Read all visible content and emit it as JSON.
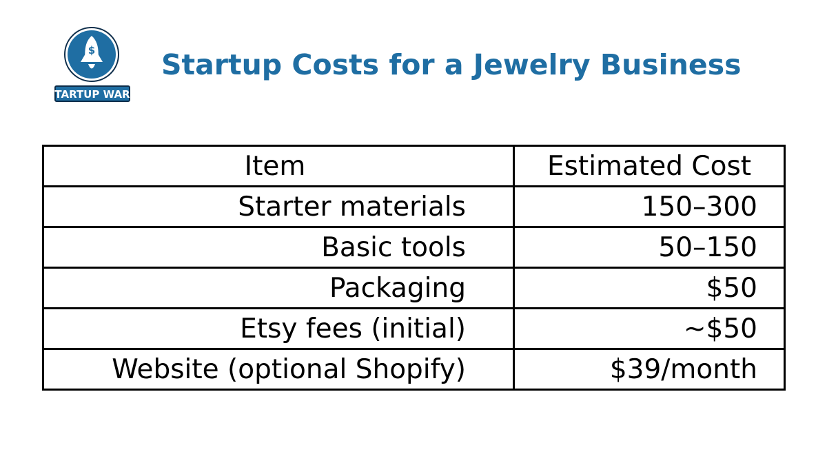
{
  "brand": {
    "logo_text": "STARTUP WARS",
    "logo_icon": "rocket-dollar-icon",
    "colors": {
      "primary": "#1f6ea3",
      "outline": "#0d2d4a"
    }
  },
  "header": {
    "title": "Startup Costs for a Jewelry Business"
  },
  "table": {
    "columns": [
      "Item",
      "Estimated Cost"
    ],
    "rows": [
      {
        "item": "Starter materials",
        "cost": "150–300"
      },
      {
        "item": "Basic tools",
        "cost": "50–150"
      },
      {
        "item": "Packaging",
        "cost": "$50"
      },
      {
        "item": "Etsy fees (initial)",
        "cost": "~$50"
      },
      {
        "item": "Website (optional Shopify)",
        "cost": "$39/month"
      }
    ]
  }
}
